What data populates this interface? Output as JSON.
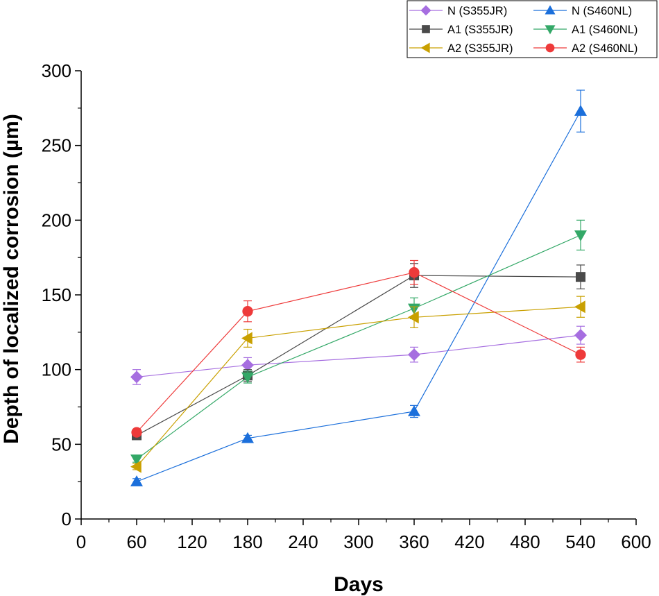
{
  "chart_data": {
    "type": "line",
    "title": "",
    "xlabel": "Days",
    "ylabel": "Depth of localized corrosion (µm)",
    "xlim": [
      0,
      600
    ],
    "ylim": [
      0,
      300
    ],
    "xticks": [
      0,
      60,
      120,
      180,
      240,
      300,
      360,
      420,
      480,
      540,
      600
    ],
    "yticks": [
      0,
      50,
      100,
      150,
      200,
      250,
      300
    ],
    "x_tick_labels": [
      "0",
      "60",
      "120",
      "180",
      "240",
      "300",
      "360",
      "420",
      "480",
      "540",
      "600"
    ],
    "y_tick_labels": [
      "0",
      "50",
      "100",
      "150",
      "200",
      "250",
      "300"
    ],
    "grid": false,
    "legend_position": "top-right",
    "series": [
      {
        "name": "N (S355JR)",
        "color": "#a66ee0",
        "marker": "diamond",
        "x": [
          60,
          180,
          360,
          540
        ],
        "values": [
          95,
          103,
          110,
          123
        ],
        "errors": [
          5,
          5,
          5,
          6
        ]
      },
      {
        "name": "N (S460NL)",
        "color": "#1b6fdb",
        "marker": "triangle-up",
        "x": [
          60,
          180,
          360,
          540
        ],
        "values": [
          25,
          54,
          72,
          273
        ],
        "errors": [
          2,
          2,
          4,
          14
        ]
      },
      {
        "name": "A1 (S355JR)",
        "color": "#4a4a4a",
        "marker": "square",
        "x": [
          60,
          180,
          360,
          540
        ],
        "values": [
          56,
          96,
          163,
          162
        ],
        "errors": [
          2,
          4,
          8,
          8
        ]
      },
      {
        "name": "A1 (S460NL)",
        "color": "#33a867",
        "marker": "triangle-down",
        "x": [
          60,
          180,
          360,
          540
        ],
        "values": [
          40,
          95,
          141,
          190
        ],
        "errors": [
          2,
          4,
          7,
          10
        ]
      },
      {
        "name": "A2 (S355JR)",
        "color": "#c9a000",
        "marker": "triangle-left",
        "x": [
          60,
          180,
          360,
          540
        ],
        "values": [
          35,
          121,
          135,
          142
        ],
        "errors": [
          2,
          6,
          7,
          7
        ]
      },
      {
        "name": "A2 (S460NL)",
        "color": "#ee3a3a",
        "marker": "circle",
        "x": [
          60,
          180,
          360,
          540
        ],
        "values": [
          58,
          139,
          165,
          110
        ],
        "errors": [
          2,
          7,
          8,
          5
        ]
      }
    ]
  }
}
